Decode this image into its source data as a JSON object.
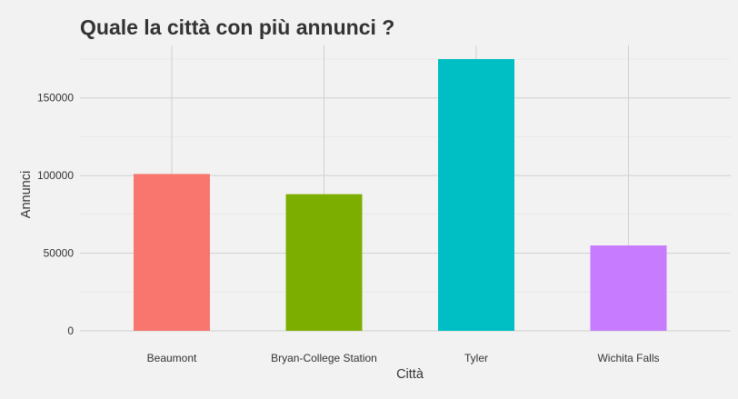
{
  "chart_data": {
    "type": "bar",
    "title": "Quale la città con più annunci ?",
    "xlabel": "Città",
    "ylabel": "Annunci",
    "categories": [
      "Beaumont",
      "Bryan-College Station",
      "Tyler",
      "Wichita Falls"
    ],
    "values": [
      101000,
      88000,
      175000,
      55000
    ],
    "colors": [
      "#f8766d",
      "#7cae00",
      "#00bfc4",
      "#c77cff"
    ],
    "yticks": [
      0,
      50000,
      100000,
      150000
    ],
    "ytick_labels": [
      "0",
      "50000",
      "100000",
      "150000"
    ],
    "ylim": [
      0,
      175000
    ],
    "grid": true,
    "legend": "none"
  }
}
